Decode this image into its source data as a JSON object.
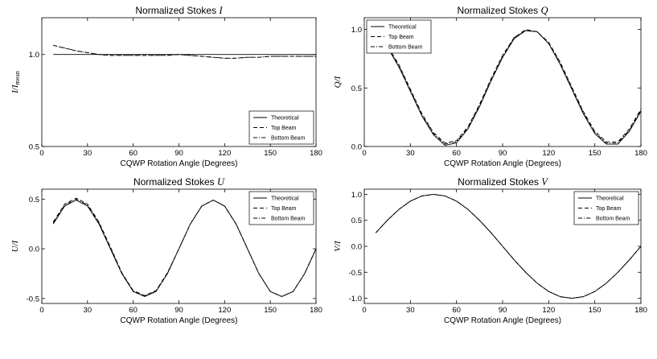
{
  "chart_data": [
    {
      "type": "line",
      "id": "I",
      "title_text": "Normalized Stokes ",
      "title_symbol": "I",
      "xlabel": "CQWP Rotation Angle (Degrees)",
      "ylabel_main": "I/I",
      "ylabel_sub": "mean",
      "xlim": [
        0,
        180
      ],
      "ylim": [
        0.5,
        1.2
      ],
      "xticks": [
        0,
        30,
        60,
        90,
        120,
        150,
        180
      ],
      "yticks": [
        0.5,
        1.0
      ],
      "ytick_labels": [
        "0.5",
        "1.0"
      ],
      "legend_position": "lower-right",
      "x": [
        7.5,
        15,
        22.5,
        30,
        37.5,
        45,
        52.5,
        60,
        67.5,
        75,
        82.5,
        90,
        97.5,
        105,
        112.5,
        120,
        127.5,
        135,
        142.5,
        150,
        157.5,
        165,
        172.5,
        180
      ],
      "series": [
        {
          "name": "Theoretical",
          "style": "solid",
          "values": [
            1,
            1,
            1,
            1,
            1,
            1,
            1,
            1,
            1,
            1,
            1,
            1,
            1,
            1,
            1,
            1,
            1,
            1,
            1,
            1,
            1,
            1,
            1,
            1
          ]
        },
        {
          "name": "Top Beam",
          "style": "dashed",
          "values": [
            1.05,
            1.035,
            1.02,
            1.01,
            1.0,
            0.995,
            0.995,
            0.995,
            0.995,
            0.995,
            0.995,
            1.0,
            0.995,
            0.99,
            0.985,
            0.98,
            0.98,
            0.985,
            0.985,
            0.99,
            0.99,
            0.99,
            0.99,
            0.99
          ]
        },
        {
          "name": "Bottom Beam",
          "style": "dashdot",
          "values": [
            1.05,
            1.035,
            1.02,
            1.01,
            1.0,
            0.995,
            0.995,
            0.995,
            0.995,
            0.995,
            0.995,
            1.0,
            0.995,
            0.99,
            0.985,
            0.98,
            0.98,
            0.985,
            0.985,
            0.99,
            0.99,
            0.99,
            0.99,
            0.99
          ]
        }
      ]
    },
    {
      "type": "line",
      "id": "Q",
      "title_text": "Normalized Stokes ",
      "title_symbol": "Q",
      "xlabel": "CQWP Rotation Angle (Degrees)",
      "ylabel_main": "Q/I",
      "ylabel_sub": "",
      "xlim": [
        0,
        180
      ],
      "ylim": [
        0,
        1.1
      ],
      "xticks": [
        0,
        30,
        60,
        90,
        120,
        150,
        180
      ],
      "yticks": [
        0,
        0.5,
        1.0
      ],
      "ytick_labels": [
        "0.0",
        "0.5",
        "1.0"
      ],
      "legend_position": "top-left",
      "x": [
        7.5,
        15,
        22.5,
        30,
        37.5,
        45,
        52.5,
        60,
        67.5,
        75,
        82.5,
        90,
        97.5,
        105,
        112.5,
        120,
        127.5,
        135,
        142.5,
        150,
        157.5,
        165,
        172.5,
        180
      ],
      "series": [
        {
          "name": "Theoretical",
          "style": "solid",
          "values": [
            0.96,
            0.85,
            0.68,
            0.47,
            0.26,
            0.1,
            0.01,
            0.03,
            0.15,
            0.34,
            0.56,
            0.76,
            0.92,
            0.99,
            0.98,
            0.88,
            0.7,
            0.49,
            0.28,
            0.11,
            0.02,
            0.02,
            0.13,
            0.3
          ]
        },
        {
          "name": "Top Beam",
          "style": "dashed",
          "values": [
            0.97,
            0.86,
            0.7,
            0.49,
            0.28,
            0.12,
            0.03,
            0.05,
            0.17,
            0.36,
            0.58,
            0.78,
            0.93,
            1.0,
            0.98,
            0.89,
            0.72,
            0.51,
            0.3,
            0.13,
            0.04,
            0.04,
            0.15,
            0.32
          ]
        },
        {
          "name": "Bottom Beam",
          "style": "dashdot",
          "values": [
            0.97,
            0.86,
            0.69,
            0.48,
            0.27,
            0.11,
            0.02,
            0.04,
            0.16,
            0.35,
            0.57,
            0.77,
            0.93,
            0.99,
            0.98,
            0.88,
            0.71,
            0.5,
            0.29,
            0.12,
            0.03,
            0.03,
            0.14,
            0.31
          ]
        }
      ]
    },
    {
      "type": "line",
      "id": "U",
      "title_text": "Normalized Stokes ",
      "title_symbol": "U",
      "xlabel": "CQWP Rotation Angle (Degrees)",
      "ylabel_main": "U/I",
      "ylabel_sub": "",
      "xlim": [
        0,
        180
      ],
      "ylim": [
        -0.55,
        0.6
      ],
      "xticks": [
        0,
        30,
        60,
        90,
        120,
        150,
        180
      ],
      "yticks": [
        -0.5,
        0,
        0.5
      ],
      "ytick_labels": [
        "-0.5",
        "0.0",
        "0.5"
      ],
      "legend_position": "top-right",
      "x": [
        7.5,
        15,
        22.5,
        30,
        37.5,
        45,
        52.5,
        60,
        67.5,
        75,
        82.5,
        90,
        97.5,
        105,
        112.5,
        120,
        127.5,
        135,
        142.5,
        150,
        157.5,
        165,
        172.5,
        180
      ],
      "series": [
        {
          "name": "Theoretical",
          "style": "solid",
          "values": [
            0.25,
            0.43,
            0.49,
            0.43,
            0.25,
            0.0,
            -0.25,
            -0.43,
            -0.48,
            -0.43,
            -0.25,
            0.0,
            0.25,
            0.43,
            0.49,
            0.43,
            0.25,
            0.0,
            -0.25,
            -0.43,
            -0.48,
            -0.43,
            -0.25,
            0.0
          ]
        },
        {
          "name": "Top Beam",
          "style": "dashed",
          "values": [
            0.27,
            0.45,
            0.51,
            0.45,
            0.27,
            0.02,
            -0.24,
            -0.42,
            -0.47,
            -0.42,
            -0.24,
            0.0,
            0.25,
            0.43,
            0.49,
            0.43,
            0.25,
            0.0,
            -0.25,
            -0.43,
            -0.48,
            -0.43,
            -0.25,
            0.0
          ]
        },
        {
          "name": "Bottom Beam",
          "style": "dashdot",
          "values": [
            0.26,
            0.44,
            0.5,
            0.44,
            0.26,
            0.01,
            -0.245,
            -0.425,
            -0.475,
            -0.425,
            -0.245,
            0.0,
            0.25,
            0.43,
            0.49,
            0.43,
            0.25,
            0.0,
            -0.25,
            -0.43,
            -0.48,
            -0.43,
            -0.25,
            0.0
          ]
        }
      ]
    },
    {
      "type": "line",
      "id": "V",
      "title_text": "Normalized Stokes ",
      "title_symbol": "V",
      "xlabel": "CQWP Rotation Angle (Degrees)",
      "ylabel_main": "V/I",
      "ylabel_sub": "",
      "xlim": [
        0,
        180
      ],
      "ylim": [
        -1.1,
        1.1
      ],
      "xticks": [
        0,
        30,
        60,
        90,
        120,
        150,
        180
      ],
      "yticks": [
        -1.0,
        -0.5,
        0,
        0.5,
        1.0
      ],
      "ytick_labels": [
        "-1.0",
        "-0.5",
        "0.0",
        "0.5",
        "1.0"
      ],
      "legend_position": "top-right",
      "x": [
        7.5,
        15,
        22.5,
        30,
        37.5,
        45,
        52.5,
        60,
        67.5,
        75,
        82.5,
        90,
        97.5,
        105,
        112.5,
        120,
        127.5,
        135,
        142.5,
        150,
        157.5,
        165,
        172.5,
        180
      ],
      "series": [
        {
          "name": "Theoretical",
          "style": "solid",
          "values": [
            0.26,
            0.5,
            0.71,
            0.87,
            0.97,
            1.0,
            0.97,
            0.87,
            0.71,
            0.5,
            0.26,
            0.0,
            -0.26,
            -0.5,
            -0.71,
            -0.87,
            -0.97,
            -1.0,
            -0.97,
            -0.87,
            -0.71,
            -0.5,
            -0.26,
            0.0
          ]
        },
        {
          "name": "Top Beam",
          "style": "dashed",
          "values": [
            0.26,
            0.5,
            0.71,
            0.87,
            0.97,
            1.0,
            0.97,
            0.87,
            0.71,
            0.5,
            0.26,
            0.0,
            -0.26,
            -0.5,
            -0.71,
            -0.87,
            -0.97,
            -1.0,
            -0.97,
            -0.87,
            -0.71,
            -0.5,
            -0.26,
            0.0
          ]
        },
        {
          "name": "Bottom Beam",
          "style": "dashdot",
          "values": [
            0.26,
            0.5,
            0.71,
            0.87,
            0.97,
            1.0,
            0.97,
            0.87,
            0.71,
            0.5,
            0.26,
            0.0,
            -0.26,
            -0.5,
            -0.71,
            -0.87,
            -0.97,
            -1.0,
            -0.97,
            -0.87,
            -0.71,
            -0.5,
            -0.26,
            0.0
          ]
        }
      ]
    }
  ]
}
